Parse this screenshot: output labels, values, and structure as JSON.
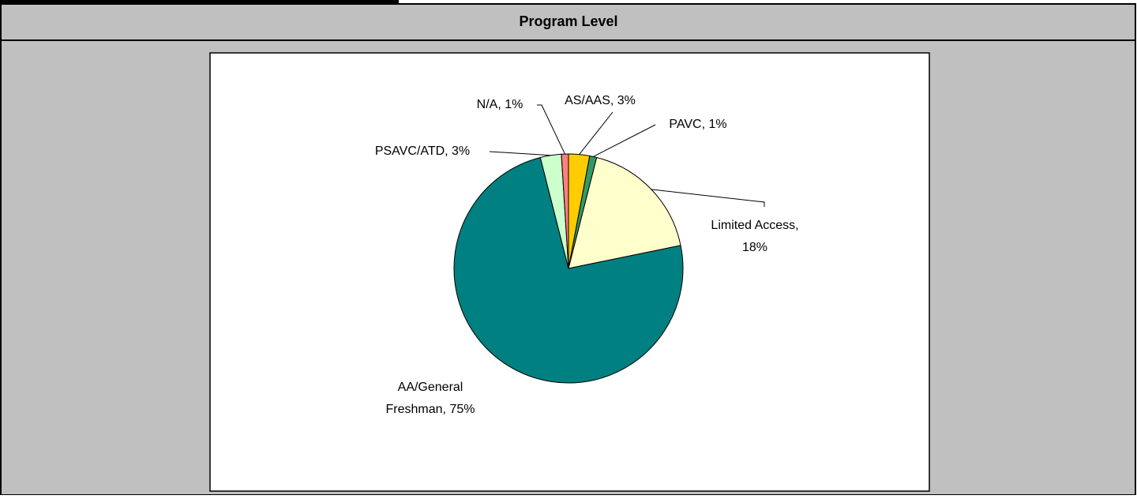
{
  "chart_data": {
    "type": "pie",
    "title": "Program Level",
    "values": [
      3,
      1,
      18,
      75,
      3,
      1
    ],
    "labels": [
      [
        "AS/AAS, 3%"
      ],
      [
        "PAVC, 1%"
      ],
      [
        "Limited Access,",
        "18%"
      ],
      [
        "AA/General",
        "Freshman, 75%"
      ],
      [
        "PSAVC/ATD, 3%"
      ],
      [
        "N/A, 1%"
      ]
    ],
    "colors": [
      "#ffcc00",
      "#339966",
      "#ffffcc",
      "#008080",
      "#ccffcc",
      "#ff8080"
    ]
  }
}
